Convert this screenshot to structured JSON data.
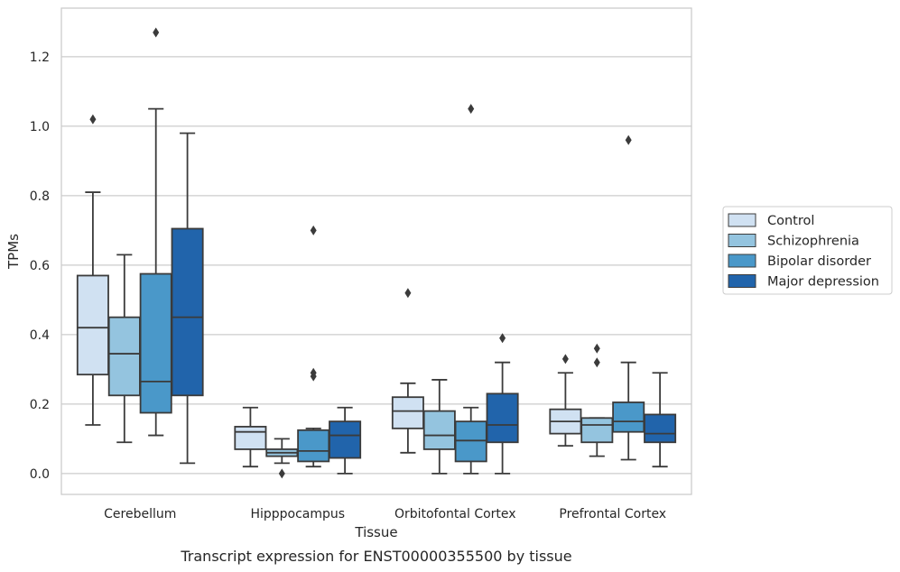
{
  "chart_data": {
    "type": "box",
    "caption": "Transcript expression for ENST00000355500 by tissue",
    "xlabel": "Tissue",
    "ylabel": "TPMs",
    "ylim": [
      -0.06,
      1.34
    ],
    "yticks": [
      0.0,
      0.2,
      0.4,
      0.6,
      0.8,
      1.0,
      1.2
    ],
    "ytick_labels": [
      "0.0",
      "0.2",
      "0.4",
      "0.6",
      "0.8",
      "1.0",
      "1.2"
    ],
    "grid": "horizontal",
    "legend_position": "right",
    "categories": [
      "Cerebellum",
      "Hipppocampus",
      "Orbitofontal Cortex",
      "Prefrontal Cortex"
    ],
    "series": [
      {
        "name": "Control",
        "color": "#d0e1f2",
        "boxes": [
          {
            "whislo": 0.14,
            "q1": 0.285,
            "med": 0.42,
            "q3": 0.57,
            "whishi": 0.81,
            "fliers": [
              1.02
            ]
          },
          {
            "whislo": 0.02,
            "q1": 0.07,
            "med": 0.12,
            "q3": 0.135,
            "whishi": 0.19,
            "fliers": []
          },
          {
            "whislo": 0.06,
            "q1": 0.13,
            "med": 0.18,
            "q3": 0.22,
            "whishi": 0.26,
            "fliers": [
              0.52
            ]
          },
          {
            "whislo": 0.08,
            "q1": 0.115,
            "med": 0.15,
            "q3": 0.185,
            "whishi": 0.29,
            "fliers": [
              0.33
            ]
          }
        ]
      },
      {
        "name": "Schizophrenia",
        "color": "#94c4df",
        "boxes": [
          {
            "whislo": 0.09,
            "q1": 0.225,
            "med": 0.345,
            "q3": 0.45,
            "whishi": 0.63,
            "fliers": []
          },
          {
            "whislo": 0.03,
            "q1": 0.05,
            "med": 0.06,
            "q3": 0.07,
            "whishi": 0.1,
            "fliers": [
              0.0
            ]
          },
          {
            "whislo": 0.0,
            "q1": 0.07,
            "med": 0.11,
            "q3": 0.18,
            "whishi": 0.27,
            "fliers": []
          },
          {
            "whislo": 0.05,
            "q1": 0.09,
            "med": 0.14,
            "q3": 0.16,
            "whishi": 0.16,
            "fliers": [
              0.32,
              0.36
            ]
          }
        ]
      },
      {
        "name": "Bipolar disorder",
        "color": "#4a98c9",
        "boxes": [
          {
            "whislo": 0.11,
            "q1": 0.175,
            "med": 0.265,
            "q3": 0.575,
            "whishi": 1.05,
            "fliers": [
              1.27
            ]
          },
          {
            "whislo": 0.02,
            "q1": 0.035,
            "med": 0.065,
            "q3": 0.125,
            "whishi": 0.13,
            "fliers": [
              0.28,
              0.29,
              0.7
            ]
          },
          {
            "whislo": 0.0,
            "q1": 0.035,
            "med": 0.095,
            "q3": 0.15,
            "whishi": 0.19,
            "fliers": [
              1.05
            ]
          },
          {
            "whislo": 0.04,
            "q1": 0.12,
            "med": 0.15,
            "q3": 0.205,
            "whishi": 0.32,
            "fliers": [
              0.96
            ]
          }
        ]
      },
      {
        "name": "Major depression",
        "color": "#2164ab",
        "boxes": [
          {
            "whislo": 0.03,
            "q1": 0.225,
            "med": 0.45,
            "q3": 0.705,
            "whishi": 0.98,
            "fliers": []
          },
          {
            "whislo": 0.0,
            "q1": 0.045,
            "med": 0.11,
            "q3": 0.15,
            "whishi": 0.19,
            "fliers": []
          },
          {
            "whislo": 0.0,
            "q1": 0.09,
            "med": 0.14,
            "q3": 0.23,
            "whishi": 0.32,
            "fliers": [
              0.39
            ]
          },
          {
            "whislo": 0.02,
            "q1": 0.09,
            "med": 0.115,
            "q3": 0.17,
            "whishi": 0.29,
            "fliers": []
          }
        ]
      }
    ]
  }
}
